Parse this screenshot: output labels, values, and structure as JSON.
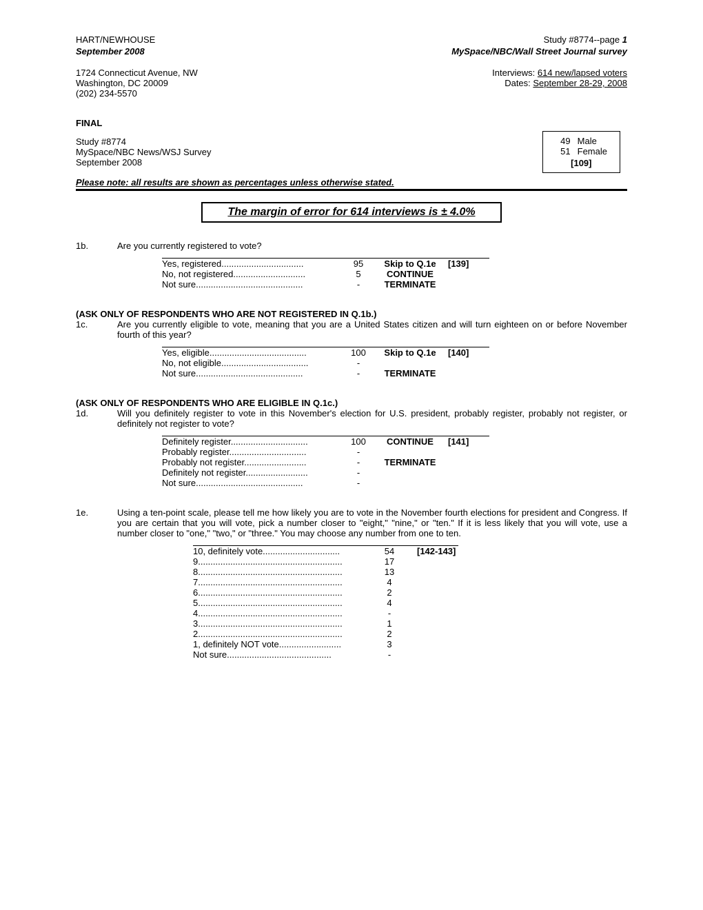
{
  "header": {
    "left1": "HART/NEWHOUSE",
    "left2": "September 2008",
    "right1_a": "Study #8774--page ",
    "right1_b": "1",
    "right2": "MySpace/NBC/Wall Street Journal survey"
  },
  "address": {
    "line1": "1724 Connecticut Avenue, NW",
    "line2": "Washington, DC 20009",
    "line3": "(202) 234-5570"
  },
  "contact": {
    "interviews_label": "Interviews: ",
    "interviews_val": "614 new/lapsed voters",
    "dates_label": "Dates: ",
    "dates_val": "September 28-29, 2008"
  },
  "gender": {
    "male_n": "49",
    "male_label": "Male",
    "female_n": "51",
    "female_label": "Female",
    "code": "[109]"
  },
  "final": "FINAL",
  "study": {
    "line1": "Study #8774",
    "line2": "MySpace/NBC News/WSJ Survey",
    "line3": "September 2008"
  },
  "note": "Please note: all results are shown as percentages unless otherwise stated.",
  "moe": "The margin of error for 614 interviews is ± 4.0%",
  "q1b": {
    "num": "1b.",
    "text": "Are you currently registered to vote?",
    "rows": [
      {
        "label": "Yes, registered",
        "dots": ".................................",
        "val": "95",
        "action": "Skip to Q.1e",
        "code": "[139]"
      },
      {
        "label": "No, not registered",
        "dots": ".............................",
        "val": "5",
        "action": "CONTINUE",
        "code": ""
      },
      {
        "label": "Not sure",
        "dots": "...........................................",
        "val": "-",
        "action": "TERMINATE",
        "code": ""
      }
    ]
  },
  "q1c": {
    "instr": "(ASK ONLY OF RESPONDENTS WHO ARE NOT REGISTERED IN Q.1b.)",
    "num": "1c.",
    "text": "Are you currently eligible to vote, meaning that you are a United States citizen and will turn eighteen on or before November fourth of this year?",
    "rows": [
      {
        "label": "Yes, eligible",
        "dots": ".......................................",
        "val": "100",
        "action": "Skip to Q.1e",
        "code": "[140]"
      },
      {
        "label": "No, not eligible",
        "dots": "...................................",
        "val": "-",
        "action": "",
        "code": ""
      },
      {
        "label": "Not sure",
        "dots": "...........................................",
        "val": "-",
        "action": "TERMINATE",
        "code": ""
      }
    ]
  },
  "q1d": {
    "instr": "(ASK ONLY OF RESPONDENTS WHO ARE ELIGIBLE IN Q.1c.)",
    "num": "1d.",
    "text": "Will you definitely register to vote in this November's election for U.S. president, probably register, probably not register, or definitely not register to vote?",
    "rows": [
      {
        "label": "Definitely register",
        "dots": "...............................",
        "val": "100",
        "action": "CONTINUE",
        "code": "[141]"
      },
      {
        "label": "Probably register",
        "dots": "...............................",
        "val": "-",
        "action": "",
        "code": ""
      },
      {
        "label": "Probably not register",
        "dots": ".........................",
        "val": "-",
        "action": "TERMINATE",
        "code": ""
      },
      {
        "label": "Definitely not register",
        "dots": ".........................",
        "val": "-",
        "action": "",
        "code": ""
      },
      {
        "label": "Not sure",
        "dots": "...........................................",
        "val": "-",
        "action": "",
        "code": ""
      }
    ]
  },
  "q1e": {
    "num": "1e.",
    "text": "Using a ten-point scale, please tell me how likely you are to vote in the November fourth elections for president and Congress.  If you are certain that you will vote, pick a number closer to \"eight,\" \"nine,\" or \"ten.\"  If it is less likely that you will vote, use a number closer to \"one,\" \"two,\" or \"three.\"  You may choose any number from one to ten.",
    "code": "[142-143]",
    "rows": [
      {
        "label": "10, definitely vote",
        "dots": "...............................",
        "val": "54"
      },
      {
        "label": "9",
        "dots": "..........................................................",
        "val": "17"
      },
      {
        "label": "8",
        "dots": "..........................................................",
        "val": "13"
      },
      {
        "label": "7",
        "dots": "..........................................................",
        "val": "4"
      },
      {
        "label": "6",
        "dots": "..........................................................",
        "val": "2"
      },
      {
        "label": "5",
        "dots": "..........................................................",
        "val": "4"
      },
      {
        "label": "4",
        "dots": "..........................................................",
        "val": "-"
      },
      {
        "label": "3",
        "dots": "..........................................................",
        "val": "1"
      },
      {
        "label": "2",
        "dots": "..........................................................",
        "val": "2"
      },
      {
        "label": "1, definitely NOT vote",
        "dots": ".........................",
        "val": "3"
      },
      {
        "label": " Not sure",
        "dots": "..........................................",
        "val": "-"
      }
    ]
  }
}
